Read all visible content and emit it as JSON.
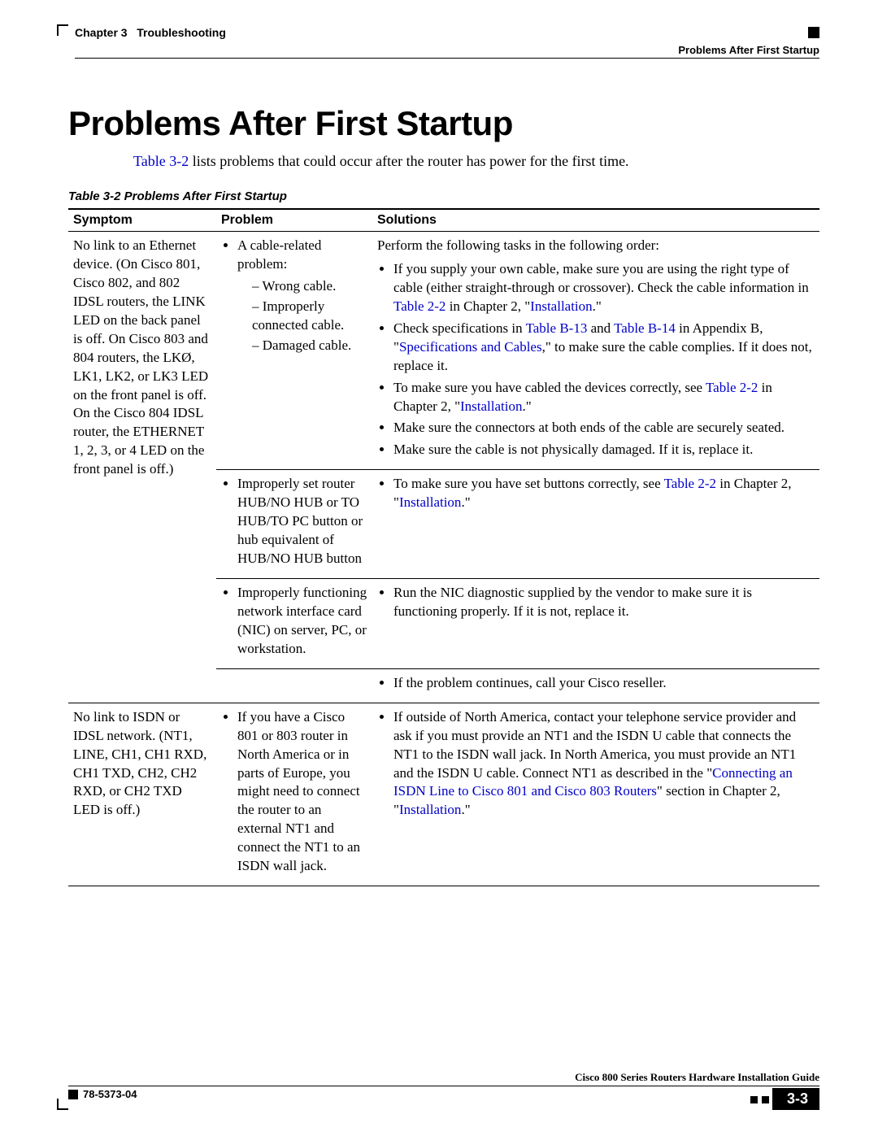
{
  "header": {
    "chapter_label": "Chapter 3",
    "chapter_title": "Troubleshooting",
    "section_right": "Problems After First Startup"
  },
  "title": "Problems After First Startup",
  "intro": {
    "link_text": "Table 3-2",
    "tail": " lists problems that could occur after the router has power for the first time."
  },
  "table_caption": "Table 3-2    Problems After First Startup",
  "columns": {
    "symptom": "Symptom",
    "problem": "Problem",
    "solutions": "Solutions"
  },
  "row1": {
    "symptom": "No link to an Ethernet device. (On Cisco 801, Cisco 802, and 802 IDSL routers, the LINK LED on the back panel is off. On Cisco 803 and 804 routers, the LKØ, LK1, LK2, or LK3 LED on the front panel is off. On the Cisco 804 IDSL router, the ETHERNET 1, 2, 3, or 4 LED on the front panel is off.)",
    "problem": {
      "lead": "A cable-related problem:",
      "items": [
        "Wrong cable.",
        "Improperly connected cable.",
        "Damaged cable."
      ]
    },
    "solutions": {
      "intro": "Perform the following tasks in the following order:",
      "s1a": "If you supply your own cable, make sure you are using the right type of cable (either straight-through or crossover). Check the cable information in ",
      "s1_link1": "Table 2-2",
      "s1b": " in Chapter 2, \"",
      "s1_link2": "Installation",
      "s1c": ".\"",
      "s2a": "Check specifications in ",
      "s2_link1": "Table B-13",
      "s2b": " and ",
      "s2_link2": "Table B-14",
      "s2c": " in Appendix B, \"",
      "s2_link3": "Specifications and Cables",
      "s2d": ",\" to make sure the cable complies. If it does not, replace it.",
      "s3a": "To make sure you have cabled the devices correctly, see ",
      "s3_link1": "Table 2-2",
      "s3b": " in Chapter 2, \"",
      "s3_link2": "Installation",
      "s3c": ".\"",
      "s4": "Make sure the connectors at both ends of the cable are securely seated.",
      "s5": "Make sure the cable is not physically damaged. If it is, replace it."
    }
  },
  "row2": {
    "problem": "Improperly set router HUB/NO HUB or TO HUB/TO PC button or hub equivalent of HUB/NO HUB button",
    "sol_a": "To make sure you have set buttons correctly, see ",
    "sol_link1": "Table 2-2",
    "sol_b": " in Chapter 2, \"",
    "sol_link2": "Installation",
    "sol_c": ".\""
  },
  "row3": {
    "problem": "Improperly functioning network interface card (NIC) on server, PC, or workstation.",
    "solution": "Run the NIC diagnostic supplied by the vendor to make sure it is functioning properly. If it is not, replace it."
  },
  "row4": {
    "solution": "If the problem continues, call your Cisco reseller."
  },
  "row5": {
    "symptom": "No link to ISDN or IDSL network. (NT1, LINE, CH1, CH1 RXD, CH1 TXD, CH2, CH2 RXD, or CH2 TXD LED is off.)",
    "problem": "If you have a Cisco 801 or 803 router in North America or in parts of Europe, you might need to connect the router to an external NT1 and connect the NT1 to an ISDN wall jack.",
    "sol_a": "If outside of North America, contact your telephone service provider and ask if you must provide an NT1 and the ISDN U cable that connects the NT1 to the ISDN wall jack. In North America, you must provide an NT1 and the ISDN U cable. Connect NT1 as described in the \"",
    "sol_link1": "Connecting an ISDN Line to Cisco 801 and Cisco 803 Routers",
    "sol_b": "\" section in Chapter 2, \"",
    "sol_link2": "Installation",
    "sol_c": ".\""
  },
  "footer": {
    "guide": "Cisco 800 Series Routers Hardware Installation Guide",
    "doc_num": "78-5373-04",
    "page": "3-3"
  },
  "colors": {
    "link": "#0000c8",
    "text": "#000000",
    "bg": "#ffffff"
  }
}
